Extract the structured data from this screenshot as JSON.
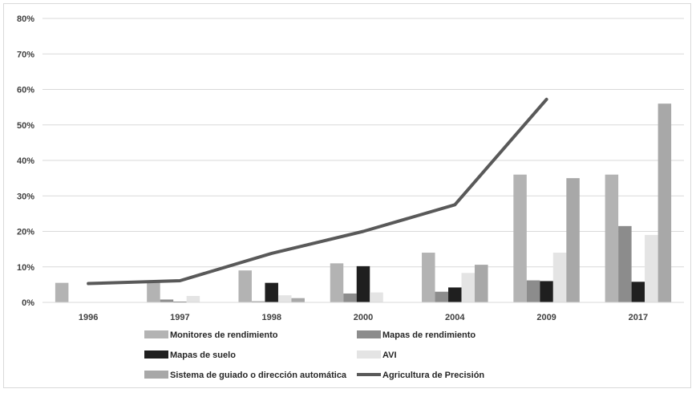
{
  "chart_data": {
    "type": "bar",
    "categories": [
      "1996",
      "1997",
      "1998",
      "2000",
      "2004",
      "2009",
      "2017"
    ],
    "ylim": [
      0,
      80
    ],
    "yticks": [
      0,
      10,
      20,
      30,
      40,
      50,
      60,
      70,
      80
    ],
    "ytick_labels": [
      "0%",
      "10%",
      "20%",
      "30%",
      "40%",
      "50%",
      "60%",
      "70%",
      "80%"
    ],
    "grid": true,
    "legend_position": "bottom",
    "series": [
      {
        "name": "Monitores de rendimiento",
        "kind": "bar",
        "color": "#b3b3b3",
        "values": [
          5.5,
          5.8,
          9,
          11,
          14,
          36,
          36
        ]
      },
      {
        "name": "Mapas de rendimiento",
        "kind": "bar",
        "color": "#8c8c8c",
        "values": [
          null,
          0.8,
          0.3,
          2.5,
          3,
          6.2,
          21.5
        ]
      },
      {
        "name": "Mapas de suelo",
        "kind": "bar",
        "color": "#1f1f1f",
        "values": [
          null,
          0.2,
          5.5,
          10.2,
          4.2,
          6,
          5.8
        ]
      },
      {
        "name": "AVI",
        "kind": "bar",
        "color": "#e4e4e4",
        "values": [
          null,
          1.8,
          2,
          2.8,
          8.3,
          14,
          19
        ]
      },
      {
        "name": "Sistema de guiado o dirección automática",
        "kind": "bar",
        "color": "#a8a8a8",
        "values": [
          null,
          null,
          1.2,
          null,
          10.6,
          35,
          56
        ]
      },
      {
        "name": "Agricultura de Precisión",
        "kind": "line",
        "color": "#595959",
        "values": [
          5.3,
          6.1,
          13.8,
          20,
          27.5,
          57.2,
          null
        ]
      }
    ]
  }
}
